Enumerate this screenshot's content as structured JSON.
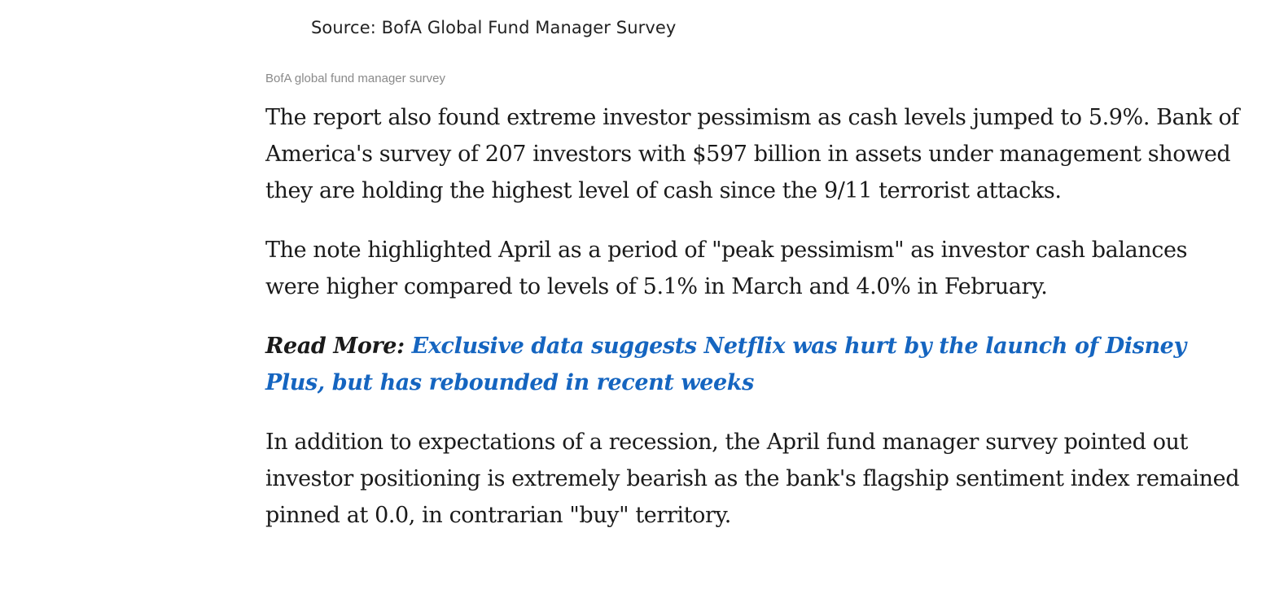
{
  "image": {
    "source": "Source: BofA Global Fund Manager Survey",
    "caption": "BofA global fund manager survey"
  },
  "article": {
    "paragraphs": [
      "The report also found extreme investor pessimism as cash levels jumped to 5.9%. Bank of America's survey of 207 investors with $597 billion in assets under management showed they are holding the highest level of cash since the 9/11 terrorist attacks.",
      "The note highlighted April as a period of \"peak pessimism\" as investor cash balances were higher compared to levels of 5.1% in March and 4.0% in February."
    ],
    "read_more": {
      "label": "Read More:",
      "link_text": "Exclusive data suggests Netflix was hurt by the launch of Disney Plus, but has rebounded in recent weeks"
    },
    "closing_paragraph": "In addition to expectations of a recession, the April fund manager survey pointed out investor positioning is extremely bearish as the bank's flagship sentiment index remained pinned at 0.0, in contrarian \"buy\" territory."
  },
  "colors": {
    "body_text": "#1a1a1a",
    "caption_text": "#8a8a8a",
    "link": "#1565c0"
  }
}
